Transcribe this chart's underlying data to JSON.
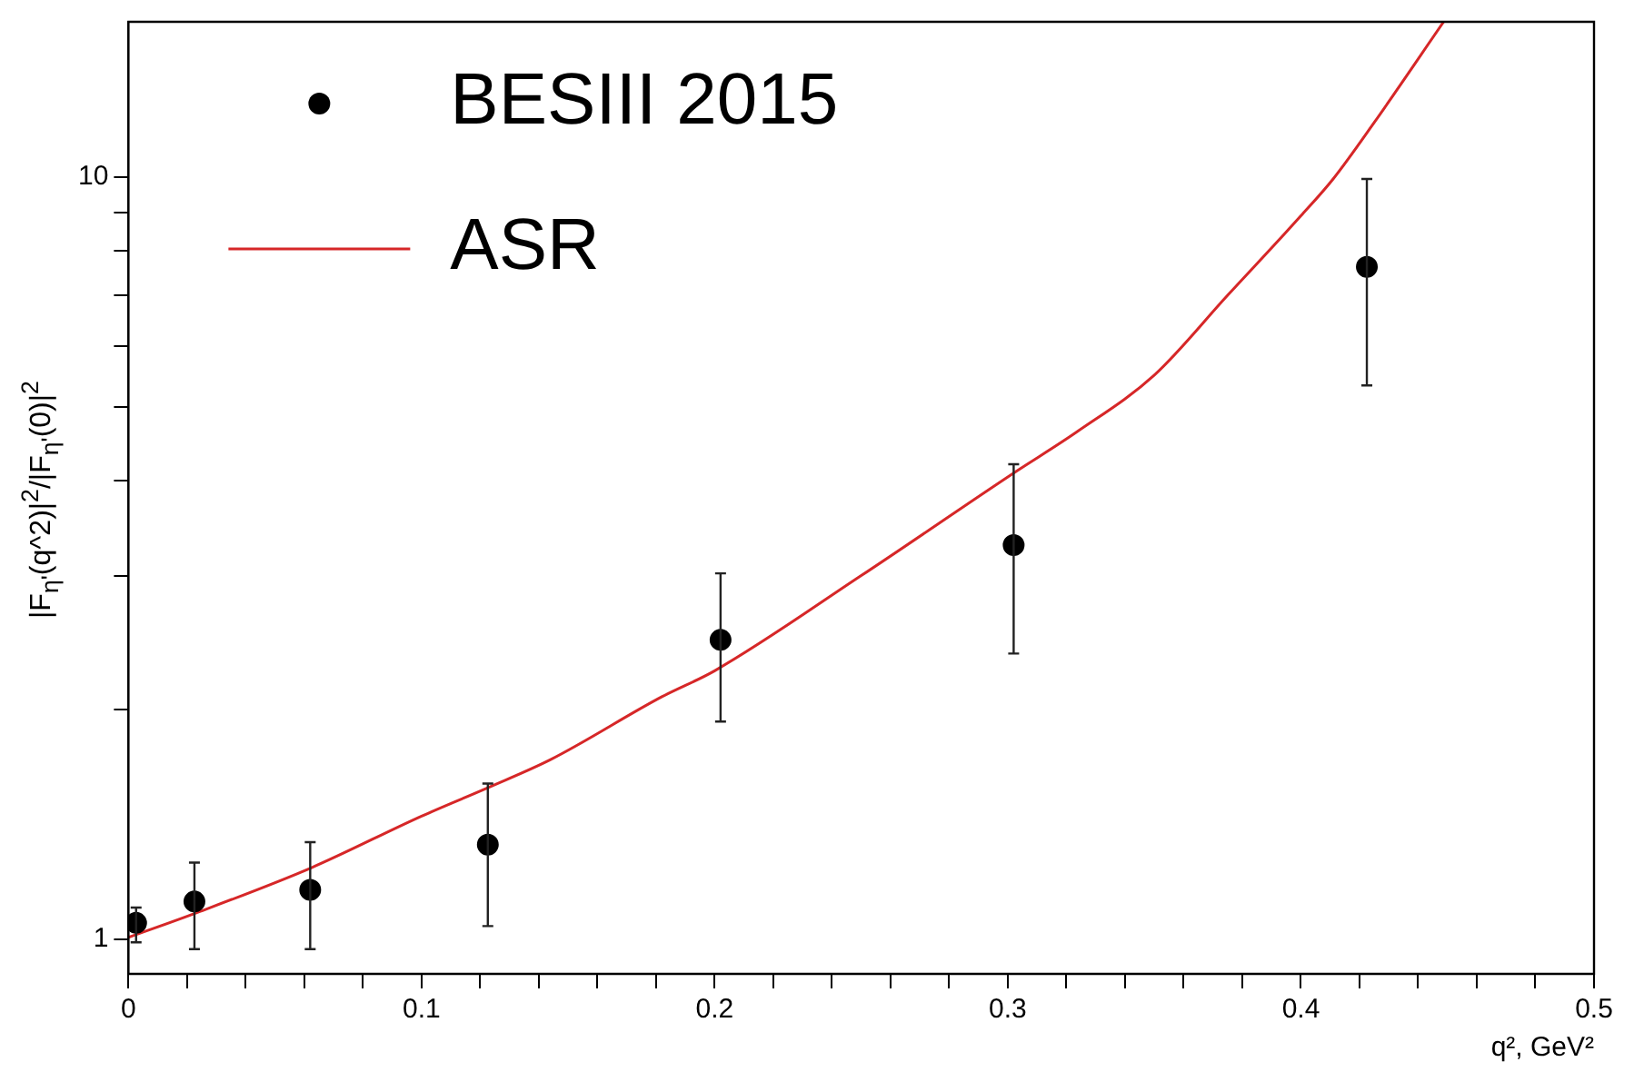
{
  "chart_data": {
    "type": "scatter",
    "xlabel": "q², GeV²",
    "ylabel": "|F$_{η'}$(q^2)|$^{2}$/|F$_{η'}$(0)|$^{2}$",
    "xlim": [
      0,
      0.5
    ],
    "ylim": [
      0.9,
      16
    ],
    "log": "y",
    "grid": false,
    "legend": "top left",
    "marker": "circle",
    "xticks": [
      0,
      {
        "value": 0.02,
        "label": null
      },
      {
        "value": 0.04,
        "label": null
      },
      {
        "value": 0.06,
        "label": null
      },
      {
        "value": 0.08,
        "label": null
      },
      0.1,
      {
        "value": 0.12,
        "label": null
      },
      {
        "value": 0.14,
        "label": null
      },
      {
        "value": 0.16,
        "label": null
      },
      {
        "value": 0.18,
        "label": null
      },
      0.2,
      {
        "value": 0.22,
        "label": null
      },
      {
        "value": 0.24,
        "label": null
      },
      {
        "value": 0.26,
        "label": null
      },
      {
        "value": 0.28,
        "label": null
      },
      0.3,
      {
        "value": 0.32,
        "label": null
      },
      {
        "value": 0.34,
        "label": null
      },
      {
        "value": 0.36,
        "label": null
      },
      {
        "value": 0.38,
        "label": null
      },
      0.4,
      {
        "value": 0.42,
        "label": null
      },
      {
        "value": 0.44,
        "label": null
      },
      {
        "value": 0.46,
        "label": null
      },
      {
        "value": 0.48,
        "label": null
      },
      0.5
    ],
    "yticks": [
      1,
      {
        "value": 2,
        "label": null
      },
      {
        "value": 3,
        "label": null
      },
      {
        "value": 4,
        "label": null
      },
      {
        "value": 5,
        "label": null
      },
      {
        "value": 6,
        "label": null
      },
      {
        "value": 7,
        "label": null
      },
      {
        "value": 8,
        "label": null
      },
      {
        "value": 9,
        "label": null
      },
      10
    ],
    "series": [
      {
        "name": "BESIII 2015",
        "color": "#000000",
        "x": [
          0.0026,
          0.0225,
          0.062,
          0.1226,
          0.202,
          0.302,
          0.4225
        ],
        "values": [
          1.05,
          1.12,
          1.16,
          1.33,
          2.47,
          3.29,
          7.63
        ],
        "errors": [
          [
            0.99,
            1.1
          ],
          [
            0.97,
            1.26
          ],
          [
            0.97,
            1.34
          ],
          [
            1.04,
            1.6
          ],
          [
            1.93,
            3.02
          ],
          [
            2.37,
            4.2
          ],
          [
            5.33,
            9.95
          ]
        ]
      },
      {
        "name": "ASR",
        "type": "line",
        "color": "#d62728",
        "marker": "none",
        "line_style": "solid",
        "x": [
          0,
          0.0225,
          0.0623,
          0.1,
          0.1226,
          0.144,
          0.182,
          0.2,
          0.25,
          0.302,
          0.3235,
          0.35,
          0.375,
          0.4,
          0.411,
          0.425,
          0.4487
        ],
        "values": [
          1.005,
          1.08,
          1.24,
          1.45,
          1.58,
          1.72,
          2.08,
          2.25,
          3.0,
          4.09,
          4.63,
          5.5,
          7.0,
          8.9,
          9.95,
          11.8,
          16
        ]
      }
    ]
  }
}
